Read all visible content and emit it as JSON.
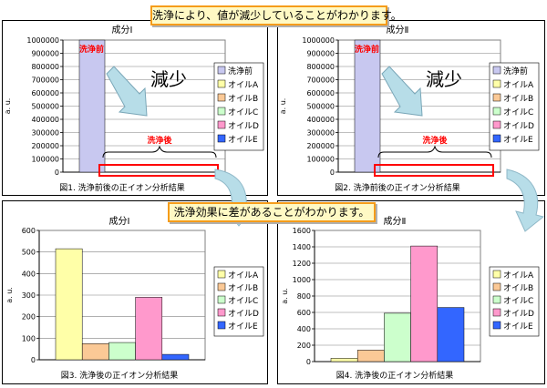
{
  "banners": {
    "top": "洗浄により、値が減少していることがわかります。",
    "middle": "洗浄効果に差があることがわかります。"
  },
  "colors": {
    "洗浄前": "#c8c8f0",
    "オイルA": "#ffffa8",
    "オイルB": "#fbc996",
    "オイルC": "#ccffcc",
    "オイルD": "#ff99cc",
    "オイルE": "#3366ff",
    "annotation_red": "#ff0000",
    "banner_border": "#f59c1a",
    "banner_fill": "#fff9c4",
    "arrow_fill": "#b7dde8"
  },
  "chart_data": [
    {
      "type": "bar",
      "title": "成分Ⅰ",
      "caption": "図1. 洗浄前後の正イオン分析結果",
      "ylabel": "a. u.",
      "ylim": [
        0,
        1000000
      ],
      "yticks": [
        "1000000",
        "900000",
        "800000",
        "700000",
        "600000",
        "500000",
        "400000",
        "300000",
        "200000",
        "100000",
        "0"
      ],
      "legend": [
        "洗浄前",
        "オイルA",
        "オイルB",
        "オイルC",
        "オイルD",
        "オイルE"
      ],
      "series": [
        {
          "name": "洗浄前",
          "value": 1000000
        },
        {
          "name": "オイルA",
          "value": 0
        },
        {
          "name": "オイルB",
          "value": 0
        },
        {
          "name": "オイルC",
          "value": 0
        },
        {
          "name": "オイルD",
          "value": 0
        },
        {
          "name": "オイルE",
          "value": 0
        }
      ],
      "annotations": {
        "before": "洗浄前",
        "after": "洗浄後",
        "decrease": "減少"
      }
    },
    {
      "type": "bar",
      "title": "成分Ⅱ",
      "caption": "図2. 洗浄前後の正イオン分析結果",
      "ylabel": "a. u.",
      "ylim": [
        0,
        1000000
      ],
      "yticks": [
        "1000000",
        "900000",
        "800000",
        "700000",
        "600000",
        "500000",
        "400000",
        "300000",
        "200000",
        "100000",
        "0"
      ],
      "legend": [
        "洗浄前",
        "オイルA",
        "オイルB",
        "オイルC",
        "オイルD",
        "オイルE"
      ],
      "series": [
        {
          "name": "洗浄前",
          "value": 1000000
        },
        {
          "name": "オイルA",
          "value": 0
        },
        {
          "name": "オイルB",
          "value": 0
        },
        {
          "name": "オイルC",
          "value": 0
        },
        {
          "name": "オイルD",
          "value": 0
        },
        {
          "name": "オイルE",
          "value": 0
        }
      ],
      "annotations": {
        "before": "洗浄前",
        "after": "洗浄後",
        "decrease": "減少"
      }
    },
    {
      "type": "bar",
      "title": "成分Ⅰ",
      "caption": "図3. 洗浄後の正イオン分析結果",
      "ylabel": "a. u.",
      "ylim": [
        0,
        600
      ],
      "yticks": [
        "600",
        "500",
        "400",
        "300",
        "200",
        "100",
        "0"
      ],
      "legend": [
        "オイルA",
        "オイルB",
        "オイルC",
        "オイルD",
        "オイルE"
      ],
      "series": [
        {
          "name": "オイルA",
          "value": 515
        },
        {
          "name": "オイルB",
          "value": 75
        },
        {
          "name": "オイルC",
          "value": 80
        },
        {
          "name": "オイルD",
          "value": 290
        },
        {
          "name": "オイルE",
          "value": 25
        }
      ]
    },
    {
      "type": "bar",
      "title": "成分Ⅱ",
      "caption": "図4. 洗浄後の正イオン分析結果",
      "ylabel": "a. u.",
      "ylim": [
        0,
        1600
      ],
      "yticks": [
        "1600",
        "1400",
        "1200",
        "1000",
        "800",
        "600",
        "400",
        "200",
        "0"
      ],
      "legend": [
        "オイルA",
        "オイルB",
        "オイルC",
        "オイルD",
        "オイルE"
      ],
      "series": [
        {
          "name": "オイルA",
          "value": 40
        },
        {
          "name": "オイルB",
          "value": 140
        },
        {
          "name": "オイルC",
          "value": 590
        },
        {
          "name": "オイルD",
          "value": 1410
        },
        {
          "name": "オイルE",
          "value": 660
        }
      ]
    }
  ]
}
